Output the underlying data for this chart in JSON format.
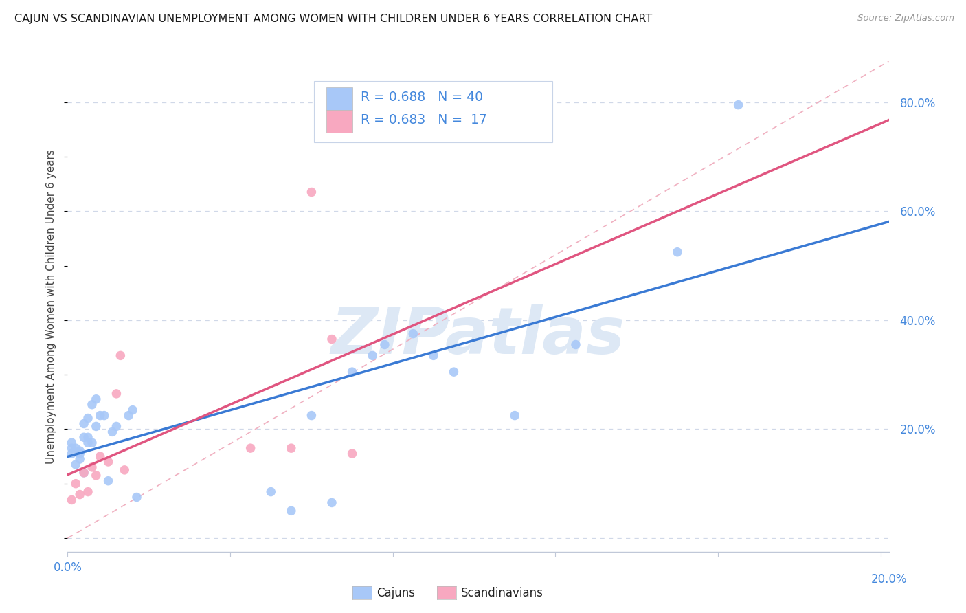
{
  "title": "CAJUN VS SCANDINAVIAN UNEMPLOYMENT AMONG WOMEN WITH CHILDREN UNDER 6 YEARS CORRELATION CHART",
  "source": "Source: ZipAtlas.com",
  "ylabel": "Unemployment Among Women with Children Under 6 years",
  "cajun_color": "#a8c8f8",
  "scandinavian_color": "#f8a8c0",
  "cajun_line_color": "#3a7ad4",
  "scandinavian_line_color": "#e05580",
  "ref_line_color": "#f0b0c0",
  "text_blue": "#4488dd",
  "text_green": "#22aa55",
  "watermark_text": "ZIPatlas",
  "xlim": [
    0.0,
    0.202
  ],
  "ylim": [
    -0.025,
    0.875
  ],
  "cajun_x": [
    0.001,
    0.001,
    0.001,
    0.002,
    0.002,
    0.003,
    0.003,
    0.003,
    0.004,
    0.004,
    0.004,
    0.005,
    0.005,
    0.005,
    0.006,
    0.006,
    0.007,
    0.007,
    0.008,
    0.009,
    0.01,
    0.011,
    0.012,
    0.015,
    0.016,
    0.017,
    0.05,
    0.055,
    0.06,
    0.065,
    0.07,
    0.075,
    0.078,
    0.085,
    0.09,
    0.095,
    0.11,
    0.125,
    0.15,
    0.165
  ],
  "cajun_y": [
    0.155,
    0.165,
    0.175,
    0.135,
    0.165,
    0.145,
    0.155,
    0.16,
    0.12,
    0.185,
    0.21,
    0.175,
    0.185,
    0.22,
    0.175,
    0.245,
    0.255,
    0.205,
    0.225,
    0.225,
    0.105,
    0.195,
    0.205,
    0.225,
    0.235,
    0.075,
    0.085,
    0.05,
    0.225,
    0.065,
    0.305,
    0.335,
    0.355,
    0.375,
    0.335,
    0.305,
    0.225,
    0.355,
    0.525,
    0.795
  ],
  "scand_x": [
    0.001,
    0.002,
    0.003,
    0.004,
    0.005,
    0.006,
    0.007,
    0.008,
    0.01,
    0.012,
    0.013,
    0.014,
    0.045,
    0.055,
    0.06,
    0.065,
    0.07
  ],
  "scand_y": [
    0.07,
    0.1,
    0.08,
    0.12,
    0.085,
    0.13,
    0.115,
    0.15,
    0.14,
    0.265,
    0.335,
    0.125,
    0.165,
    0.165,
    0.635,
    0.365,
    0.155
  ],
  "grid_color": "#d0d8e8",
  "spine_color": "#c0c8d8"
}
